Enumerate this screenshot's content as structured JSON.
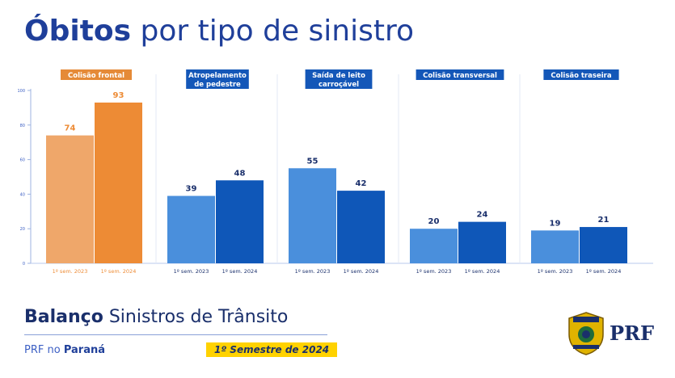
{
  "header": {
    "title_bold": "Óbitos",
    "title_rest": "por tipo de sinistro"
  },
  "chart_data": {
    "type": "bar",
    "title": "Óbitos por tipo de sinistro",
    "ylim": [
      0,
      100
    ],
    "yticks": [
      0,
      20,
      40,
      60,
      80,
      100
    ],
    "series_names": [
      "1º sem. 2023",
      "1º sem. 2024"
    ],
    "groups": [
      {
        "label": "Colisão frontal",
        "values": [
          74,
          93
        ],
        "highlight": true
      },
      {
        "label": "Atropelamento de pedestre",
        "values": [
          39,
          48
        ],
        "highlight": false
      },
      {
        "label": "Saída de leito carroçável",
        "values": [
          55,
          42
        ],
        "highlight": false
      },
      {
        "label": "Colisão transversal",
        "values": [
          20,
          24
        ],
        "highlight": false
      },
      {
        "label": "Colisão traseira",
        "values": [
          19,
          21
        ],
        "highlight": false
      }
    ],
    "colors": {
      "highlight_2023": "#efa76a",
      "highlight_2024": "#ed8b35",
      "normal_2023": "#4a8fdc",
      "normal_2024": "#0f57b8",
      "highlight_label_bg": "#e58a37",
      "normal_label_bg": "#1457b8"
    }
  },
  "footer": {
    "title_bold": "Balanço",
    "title_rest": "Sinistros de Trânsito",
    "subtitle_prefix": "PRF no",
    "subtitle_bold": "Paraná",
    "semester": "1º Semestre de 2024",
    "brand": "PRF"
  }
}
